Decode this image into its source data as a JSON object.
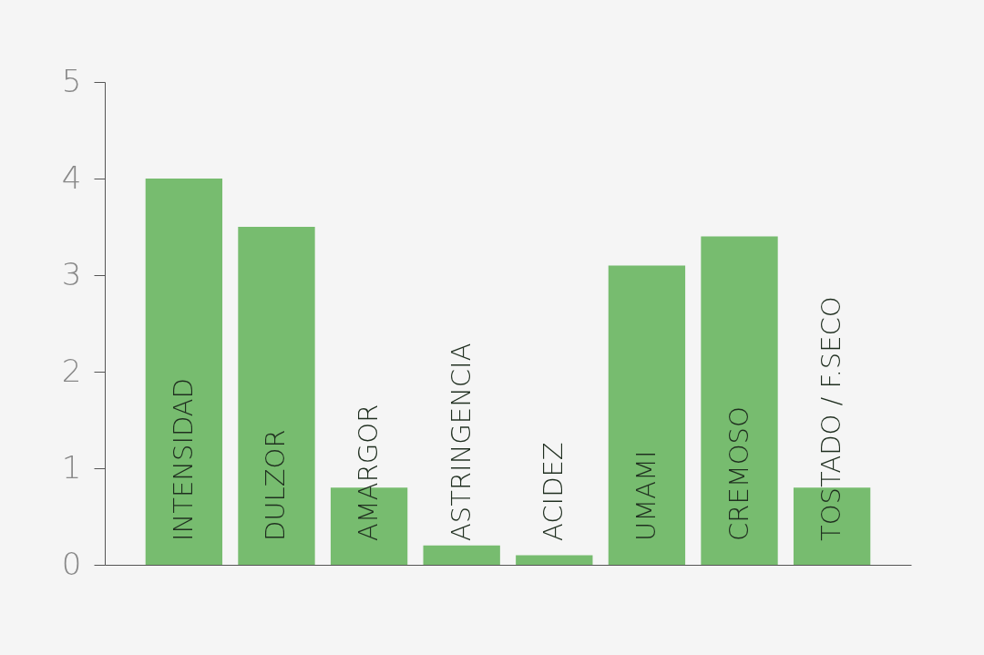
{
  "chart_data": {
    "type": "bar",
    "categories": [
      "INTENSIDAD",
      "DULZOR",
      "AMARGOR",
      "ASTRINGENCIA",
      "ACIDEZ",
      "UMAMI",
      "CREMOSO",
      "TOSTADO / F.SECO"
    ],
    "values": [
      4,
      3.5,
      0.8,
      0.2,
      0.1,
      3.1,
      3.4,
      0.8
    ],
    "color": "#77bc6f",
    "ylim": [
      0,
      5
    ],
    "yticks": [
      0,
      1,
      2,
      3,
      4,
      5
    ],
    "grid": false
  }
}
